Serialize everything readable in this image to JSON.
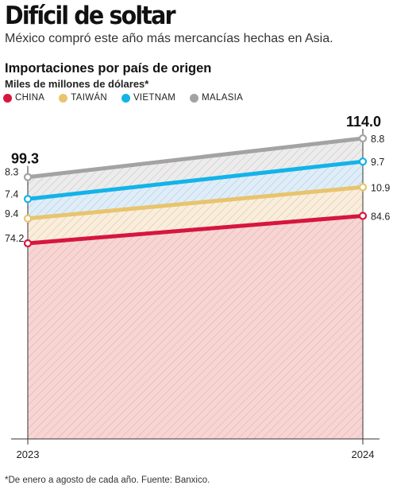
{
  "header": {
    "title": "Difícil de soltar",
    "subtitle": "México compró este año más mercancías hechas en Asia."
  },
  "chart_data": {
    "type": "area",
    "stacked": true,
    "title": "Importaciones por país de origen",
    "ylabel": "Miles de millones de dólares*",
    "categories": [
      "2023",
      "2024"
    ],
    "ylim": [
      0,
      114.0
    ],
    "totals": [
      "99.3",
      "114.0"
    ],
    "legend_position": "top-left",
    "grid": false,
    "series": [
      {
        "name": "CHINA",
        "values": [
          74.2,
          84.6
        ],
        "labels": [
          "74.2",
          "84.6"
        ],
        "color": "#d6163f",
        "fill": "#f8d5d3"
      },
      {
        "name": "TAIWÁN",
        "values": [
          9.4,
          10.9
        ],
        "labels": [
          "9.4",
          "10.9"
        ],
        "color": "#e8c46d",
        "fill": "#faeedb"
      },
      {
        "name": "VIETNAM",
        "values": [
          7.4,
          9.7
        ],
        "labels": [
          "7.4",
          "9.7"
        ],
        "color": "#13b3e8",
        "fill": "#ddeefa"
      },
      {
        "name": "MALASIA",
        "values": [
          8.3,
          8.8
        ],
        "labels": [
          "8.3",
          "8.8"
        ],
        "color": "#a3a3a3",
        "fill": "#ececec"
      }
    ]
  },
  "footnote": "*De enero a agosto de cada año. Fuente: Banxico."
}
